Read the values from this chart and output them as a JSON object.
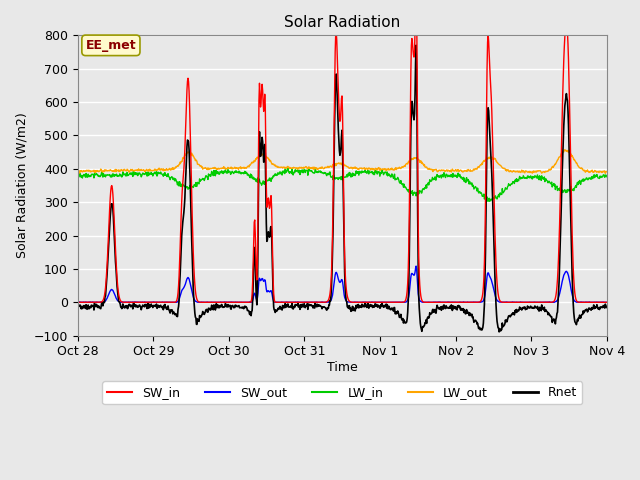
{
  "title": "Solar Radiation",
  "xlabel": "Time",
  "ylabel": "Solar Radiation (W/m2)",
  "ylim": [
    -100,
    800
  ],
  "yticks": [
    -100,
    0,
    100,
    200,
    300,
    400,
    500,
    600,
    700,
    800
  ],
  "annotation_text": "EE_met",
  "annotation_color": "#8B0000",
  "annotation_bg": "#FFFACD",
  "annotation_border": "#999900",
  "fig_bg": "#E8E8E8",
  "plot_bg": "#E8E8E8",
  "line_colors": {
    "SW_in": "#FF0000",
    "SW_out": "#0000FF",
    "LW_in": "#00CC00",
    "LW_out": "#FFA500",
    "Rnet": "#000000"
  },
  "line_widths": {
    "SW_in": 1.0,
    "SW_out": 1.0,
    "LW_in": 1.0,
    "LW_out": 1.0,
    "Rnet": 1.2
  },
  "tick_date_labels": [
    "Oct 28",
    "Oct 29",
    "Oct 30",
    "Oct 31",
    "Nov 1",
    "Nov 2",
    "Nov 3",
    "Nov 4"
  ],
  "legend_entries": [
    "SW_in",
    "SW_out",
    "LW_in",
    "LW_out",
    "Rnet"
  ],
  "legend_colors": [
    "#FF0000",
    "#0000FF",
    "#00CC00",
    "#FFA500",
    "#000000"
  ],
  "grid_color": "#FFFFFF",
  "grid_lw": 1.0
}
